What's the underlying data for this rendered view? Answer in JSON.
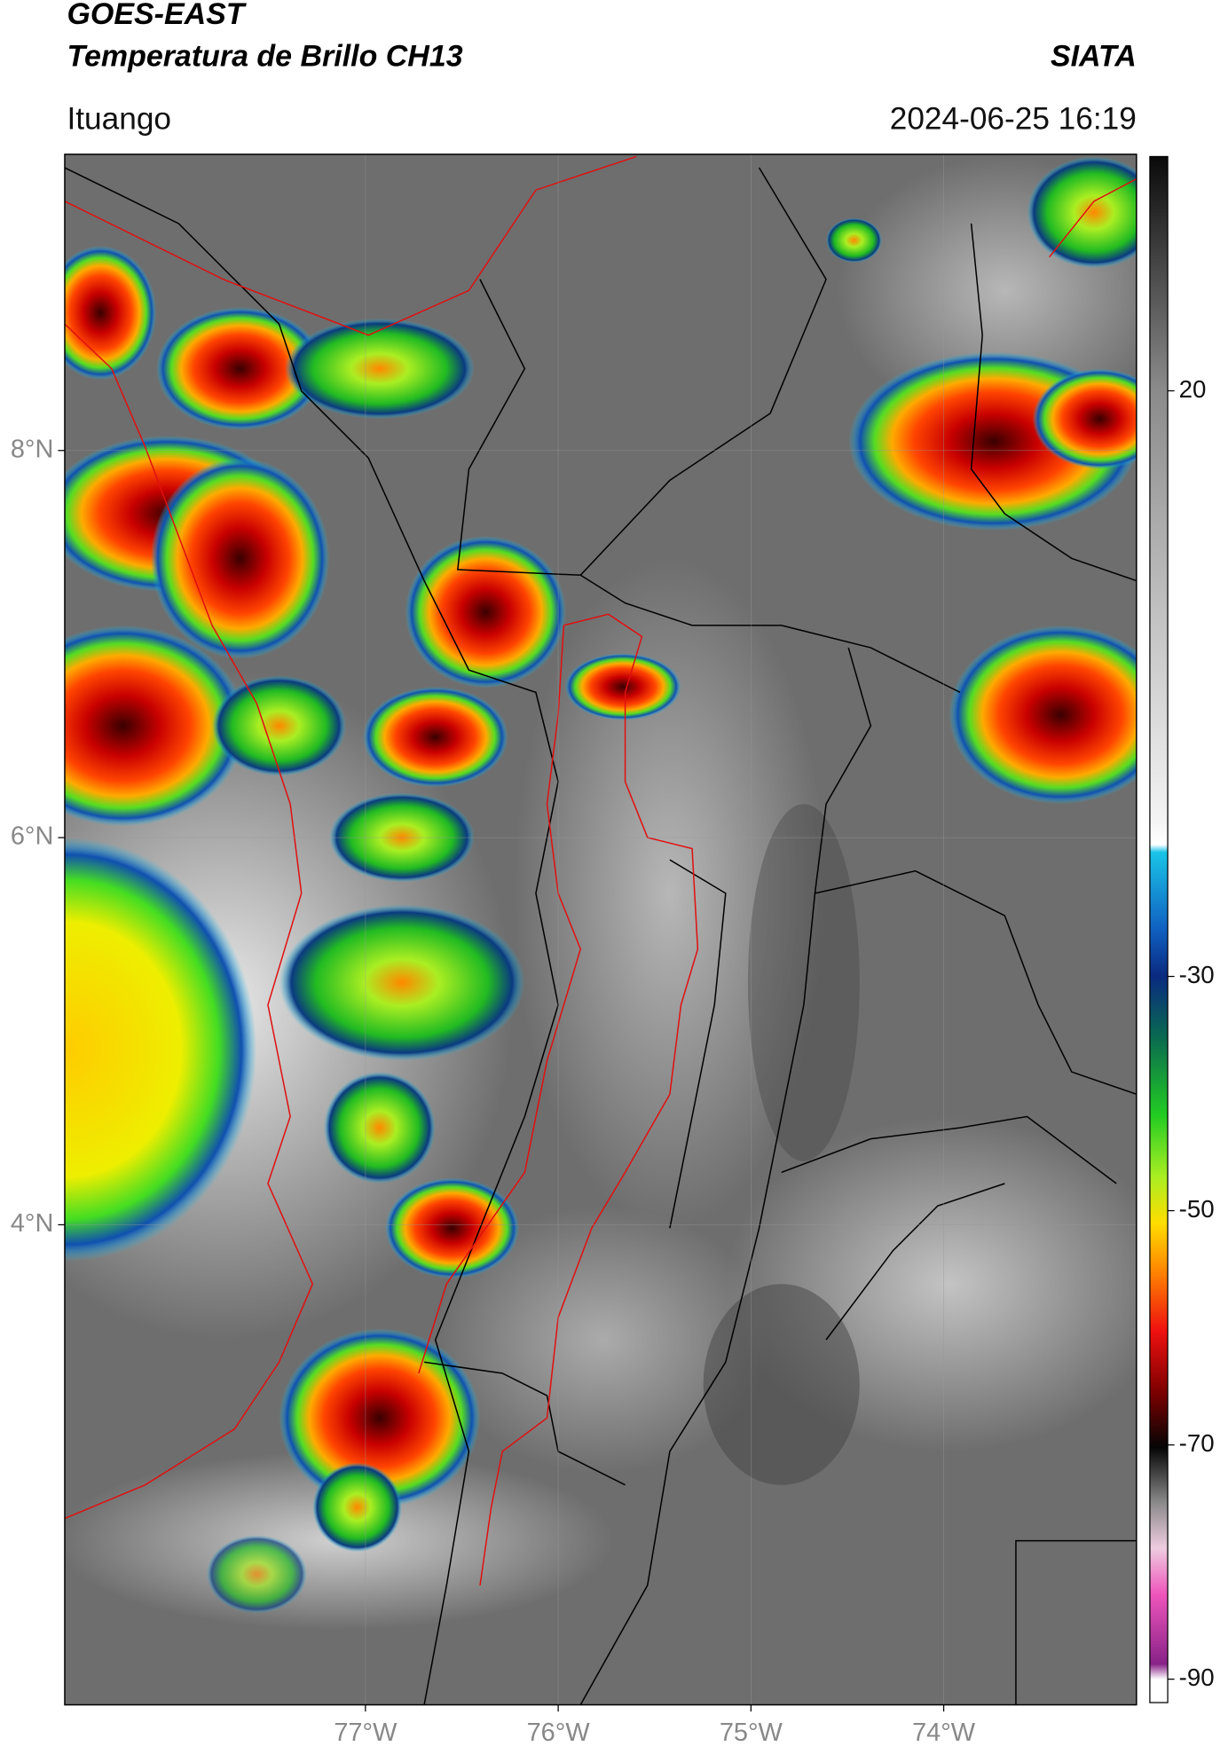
{
  "header": {
    "title_line1": "GOES-EAST",
    "title_line2": "Temperatura de Brillo CH13",
    "agency": "SIATA",
    "region": "Ituango",
    "datetime": "2024-06-25 16:19"
  },
  "map": {
    "xlim": [
      -78.56,
      -73.0
    ],
    "ylim": [
      1.52,
      9.53
    ],
    "lon_ticks": [
      {
        "value": -77,
        "label": "77°W"
      },
      {
        "value": -76,
        "label": "76°W"
      },
      {
        "value": -75,
        "label": "75°W"
      },
      {
        "value": -74,
        "label": "74°W"
      }
    ],
    "lat_ticks": [
      {
        "value": 8,
        "label": "8°N"
      },
      {
        "value": 6,
        "label": "6°N"
      },
      {
        "value": 4,
        "label": "4°N"
      }
    ]
  },
  "colorbar": {
    "lim": [
      -92,
      40
    ],
    "ticks": [
      20,
      -30,
      -50,
      -70,
      -90
    ]
  }
}
